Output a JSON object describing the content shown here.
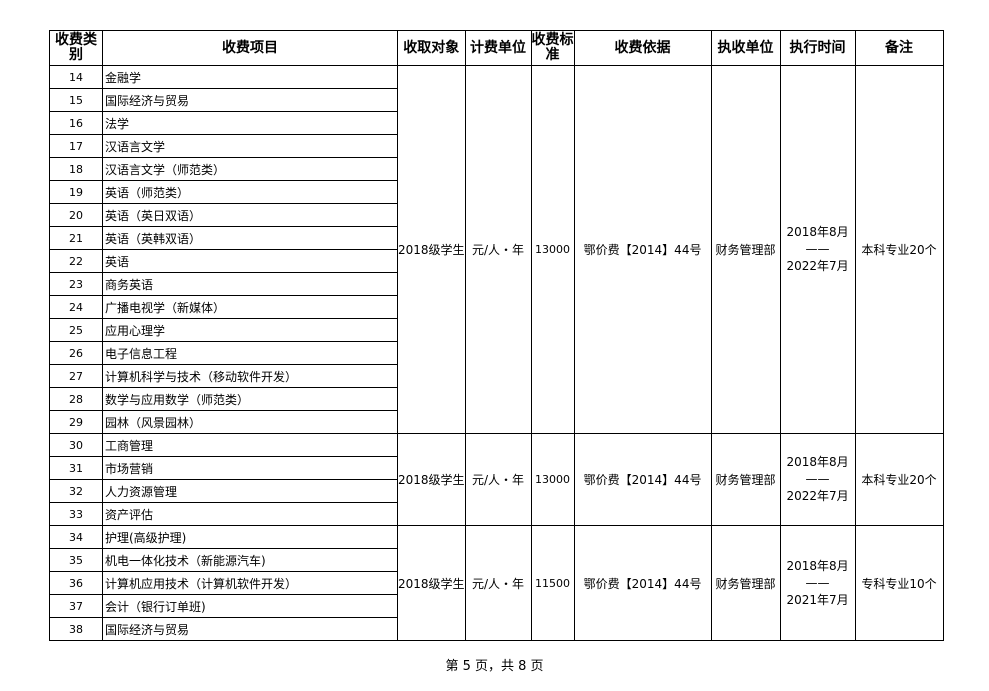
{
  "headers": [
    "收费类别",
    "收费项目",
    "收取对象",
    "计费单位",
    "收费标准",
    "收费依据",
    "执收单位",
    "执行时间",
    "备注"
  ],
  "groups": [
    {
      "rows": [
        [
          "14",
          "金融学"
        ],
        [
          "15",
          "国际经济与贸易"
        ],
        [
          "16",
          "法学"
        ],
        [
          "17",
          "汉语言文学"
        ],
        [
          "18",
          "汉语言文学（师范类）"
        ],
        [
          "19",
          "英语（师范类）"
        ],
        [
          "20",
          "英语（英日双语）"
        ],
        [
          "21",
          "英语（英韩双语）"
        ],
        [
          "22",
          "英语"
        ],
        [
          "23",
          "商务英语"
        ],
        [
          "24",
          "广播电视学（新媒体）"
        ],
        [
          "25",
          "应用心理学"
        ],
        [
          "26",
          "电子信息工程"
        ],
        [
          "27",
          "计算机科学与技术（移动软件开发）"
        ],
        [
          "28",
          "数学与应用数学（师范类）"
        ],
        [
          "29",
          "园林（风景园林）"
        ]
      ],
      "target": "2018级学生",
      "unit": "元/人・年",
      "fee": "13000",
      "basis": "鄂价费【2014】44号",
      "collector": "财务管理部",
      "period": [
        "2018年8月",
        "——",
        "2022年7月"
      ],
      "note": "本科专业20个"
    },
    {
      "rows": [
        [
          "30",
          "工商管理"
        ],
        [
          "31",
          "市场营销"
        ],
        [
          "32",
          "人力资源管理"
        ],
        [
          "33",
          "资产评估"
        ]
      ],
      "target": "2018级学生",
      "unit": "元/人・年",
      "fee": "13000",
      "basis": "鄂价费【2014】44号",
      "collector": "财务管理部",
      "period": [
        "2018年8月",
        "——",
        "2022年7月"
      ],
      "note": "本科专业20个"
    },
    {
      "rows": [
        [
          "34",
          "护理(高级护理)"
        ],
        [
          "35",
          "机电一体化技术（新能源汽车)"
        ],
        [
          "36",
          "计算机应用技术（计算机软件开发）"
        ],
        [
          "37",
          "会计（银行订单班)"
        ],
        [
          "38",
          "国际经济与贸易"
        ]
      ],
      "target": "2018级学生",
      "unit": "元/人・年",
      "fee": "11500",
      "basis": "鄂价费【2014】44号",
      "collector": "财务管理部",
      "period": [
        "2018年8月",
        "——",
        "2021年7月"
      ],
      "note": "专科专业10个"
    }
  ],
  "footer": "第 5 页，共 8 页"
}
